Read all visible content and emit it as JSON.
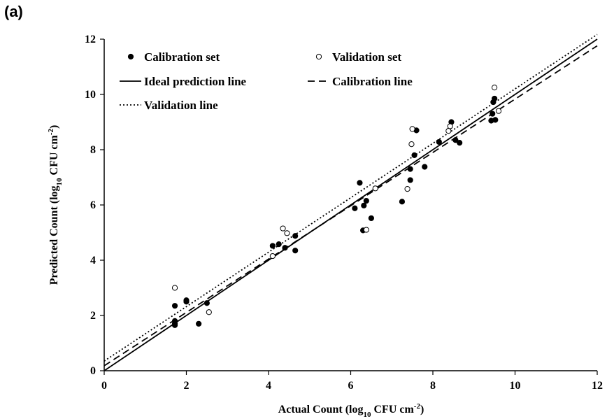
{
  "panel_label": "(a)",
  "chart_data": {
    "type": "scatter",
    "title": "",
    "xlabel": {
      "main": "Actual Count (log",
      "sub": "10",
      "mid": " CFU cm",
      "sup": "-2",
      "end": ")"
    },
    "ylabel": {
      "main": "Predicted Count (log",
      "sub": "10",
      "mid": " CFU cm",
      "sup": "-2",
      "end": ")"
    },
    "xlim": [
      0,
      12
    ],
    "ylim": [
      0,
      12
    ],
    "xticks": [
      0,
      2,
      4,
      6,
      8,
      10,
      12
    ],
    "yticks": [
      0,
      2,
      4,
      6,
      8,
      10,
      12
    ],
    "grid": false,
    "legend_position": "top-left",
    "legend": {
      "calibration_set": "Calibration set",
      "validation_set": "Validation set",
      "ideal_line": "Ideal prediction line",
      "calibration_line": "Calibration line",
      "validation_line": "Validation line"
    },
    "series": [
      {
        "name": "Calibration set",
        "marker": "filled-circle",
        "points": [
          [
            1.72,
            2.35
          ],
          [
            1.72,
            1.7
          ],
          [
            1.72,
            1.65
          ],
          [
            1.72,
            1.8
          ],
          [
            2.0,
            2.55
          ],
          [
            2.0,
            2.5
          ],
          [
            2.3,
            1.7
          ],
          [
            2.5,
            2.45
          ],
          [
            4.1,
            4.52
          ],
          [
            4.25,
            4.58
          ],
          [
            4.4,
            4.45
          ],
          [
            4.65,
            4.88
          ],
          [
            4.65,
            4.35
          ],
          [
            6.1,
            5.88
          ],
          [
            6.22,
            6.8
          ],
          [
            6.3,
            5.08
          ],
          [
            6.32,
            5.98
          ],
          [
            6.38,
            6.15
          ],
          [
            6.5,
            5.52
          ],
          [
            7.25,
            6.12
          ],
          [
            7.45,
            6.9
          ],
          [
            7.45,
            7.3
          ],
          [
            7.55,
            7.8
          ],
          [
            7.6,
            8.7
          ],
          [
            7.8,
            7.38
          ],
          [
            8.15,
            8.28
          ],
          [
            8.45,
            9.0
          ],
          [
            8.55,
            8.35
          ],
          [
            8.65,
            8.25
          ],
          [
            9.42,
            9.05
          ],
          [
            9.45,
            9.3
          ],
          [
            9.47,
            9.72
          ],
          [
            9.5,
            9.85
          ],
          [
            9.52,
            9.08
          ]
        ]
      },
      {
        "name": "Validation set",
        "marker": "open-circle",
        "points": [
          [
            1.72,
            3.0
          ],
          [
            2.55,
            2.12
          ],
          [
            4.1,
            4.15
          ],
          [
            4.35,
            5.15
          ],
          [
            4.45,
            4.98
          ],
          [
            6.38,
            5.1
          ],
          [
            6.6,
            6.6
          ],
          [
            7.38,
            6.58
          ],
          [
            7.48,
            8.2
          ],
          [
            7.5,
            8.75
          ],
          [
            8.38,
            8.68
          ],
          [
            8.42,
            8.85
          ],
          [
            9.5,
            10.25
          ],
          [
            9.6,
            9.4
          ]
        ]
      }
    ],
    "lines": [
      {
        "name": "Ideal prediction line",
        "style": "solid",
        "intercept": 0.0,
        "slope": 1.0
      },
      {
        "name": "Calibration line",
        "style": "dashed",
        "intercept": 0.18,
        "slope": 0.965
      },
      {
        "name": "Validation line",
        "style": "dotted",
        "intercept": 0.35,
        "slope": 0.985
      }
    ]
  }
}
